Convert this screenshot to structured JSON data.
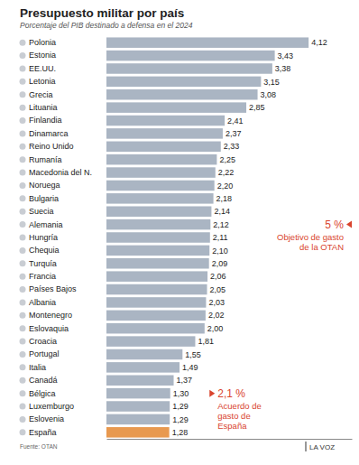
{
  "chart_data": {
    "type": "bar",
    "orientation": "horizontal",
    "title": "Presupuesto militar por país",
    "subtitle": "Porcentaje del PIB destinado a defensa en el 2024",
    "categories": [
      "Polonia",
      "Estonia",
      "EE.UU.",
      "Letonia",
      "Grecia",
      "Lituania",
      "Finlandia",
      "Dinamarca",
      "Reino Unido",
      "Rumanía",
      "Macedonia del N.",
      "Noruega",
      "Bulgaria",
      "Suecia",
      "Alemania",
      "Hungría",
      "Chequia",
      "Turquía",
      "Francia",
      "Países Bajos",
      "Albania",
      "Montenegro",
      "Eslovaquia",
      "Croacia",
      "Portugal",
      "Italia",
      "Canadá",
      "Bélgica",
      "Luxemburgo",
      "Eslovenia",
      "España"
    ],
    "values": [
      4.12,
      3.43,
      3.38,
      3.15,
      3.08,
      2.85,
      2.41,
      2.37,
      2.33,
      2.25,
      2.22,
      2.2,
      2.18,
      2.14,
      2.12,
      2.11,
      2.1,
      2.09,
      2.06,
      2.05,
      2.03,
      2.02,
      2.0,
      1.81,
      1.55,
      1.49,
      1.37,
      1.3,
      1.29,
      1.29,
      1.28
    ],
    "value_labels": [
      "4,12",
      "3,43",
      "3,38",
      "3,15",
      "3,08",
      "2,85",
      "2,41",
      "2,37",
      "2,33",
      "2,25",
      "2,22",
      "2,20",
      "2,18",
      "2,14",
      "2,12",
      "2,11",
      "2,10",
      "2,09",
      "2,06",
      "2,05",
      "2,03",
      "2,02",
      "2,00",
      "1,81",
      "1,55",
      "1,49",
      "1,37",
      "1,30",
      "1,29",
      "1,29",
      "1,28"
    ],
    "colors": [
      "#aab5c3",
      "#aab5c3",
      "#aab5c3",
      "#aab5c3",
      "#aab5c3",
      "#aab5c3",
      "#aab5c3",
      "#aab5c3",
      "#aab5c3",
      "#aab5c3",
      "#aab5c3",
      "#aab5c3",
      "#aab5c3",
      "#aab5c3",
      "#aab5c3",
      "#aab5c3",
      "#aab5c3",
      "#aab5c3",
      "#aab5c3",
      "#aab5c3",
      "#aab5c3",
      "#aab5c3",
      "#aab5c3",
      "#aab5c3",
      "#aab5c3",
      "#aab5c3",
      "#aab5c3",
      "#aab5c3",
      "#aab5c3",
      "#aab5c3",
      "#e8994f"
    ],
    "xlim": [
      0,
      5
    ],
    "data_labels": true,
    "tick_labels": "y",
    "grid": false,
    "annotations": [
      {
        "value": 5,
        "label": "5 %",
        "text": [
          "Objetivo de gasto",
          "de la OTAN"
        ],
        "color": "#d9442e"
      },
      {
        "value": 2.1,
        "label": "2,1 %",
        "text": [
          "Acuerdo de",
          "gasto de",
          "España"
        ],
        "color": "#d9442e"
      }
    ],
    "source": "Fuente: OTAN",
    "credit": "LA VOZ"
  }
}
